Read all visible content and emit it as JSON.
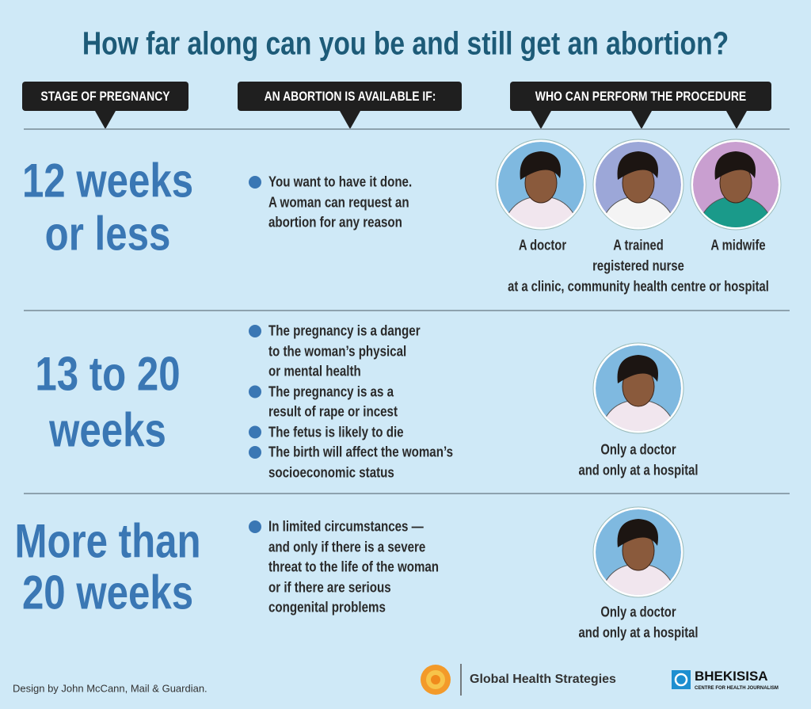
{
  "title": "How far along can you be and still get an abortion?",
  "headers": [
    "STAGE OF PREGNANCY",
    "AN ABORTION IS AVAILABLE IF:",
    "WHO CAN PERFORM THE PROCEDURE"
  ],
  "rows": [
    {
      "stage": [
        "12 weeks",
        "or less"
      ],
      "conditions": [
        [
          "You want to have it done.",
          "A woman can request an",
          "abortion for any reason"
        ]
      ],
      "providers": [
        [
          "A doctor"
        ],
        [
          "A trained",
          "registered nurse"
        ],
        [
          "A midwife"
        ]
      ],
      "note": "at a clinic, community health centre or hospital"
    },
    {
      "stage": [
        "13 to 20",
        "weeks"
      ],
      "conditions": [
        [
          "The pregnancy is a danger",
          "to the woman’s physical",
          "or mental health"
        ],
        [
          "The pregnancy is as a",
          "result of rape or incest"
        ],
        [
          "The fetus is likely to die"
        ],
        [
          "The birth will affect the woman’s",
          "socioeconomic status"
        ]
      ],
      "providers": [
        [
          "Only a doctor",
          "and only at a hospital"
        ]
      ]
    },
    {
      "stage": [
        "More than",
        "20 weeks"
      ],
      "conditions": [
        [
          "In limited circumstances —",
          "and only if there is a severe",
          "threat to the life of the woman",
          "or if there are serious",
          "congenital problems"
        ]
      ],
      "providers": [
        [
          "Only a doctor",
          "and only at a hospital"
        ]
      ]
    }
  ],
  "footer": {
    "credit": "Design by John McCann, Mail & Guardian.",
    "partner": "Global Health Strategies",
    "brand": "BHEKISISA",
    "brand_tagline": "CENTRE FOR HEALTH JOURNALISM"
  }
}
